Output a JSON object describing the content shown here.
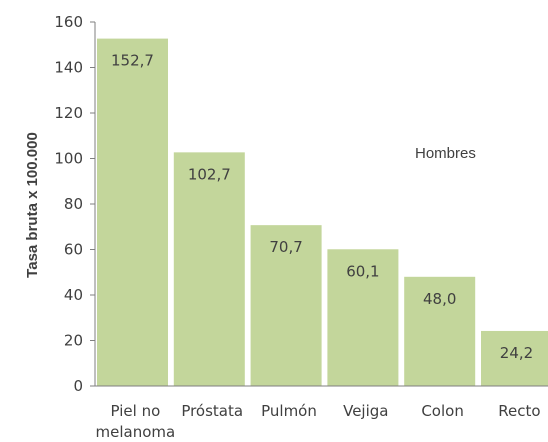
{
  "chart_data": {
    "type": "bar",
    "categories": [
      "Piel no melanoma",
      "Próstata",
      "Pulmón",
      "Vejiga",
      "Colon",
      "Recto"
    ],
    "category_lines": [
      [
        "Piel no",
        "melanoma"
      ],
      [
        "Próstata"
      ],
      [
        "Pulmón"
      ],
      [
        "Vejiga"
      ],
      [
        "Colon"
      ],
      [
        "Recto"
      ]
    ],
    "values": [
      152.7,
      102.7,
      70.7,
      60.1,
      48.0,
      24.2
    ],
    "data_labels": [
      "152,7",
      "102,7",
      "70,7",
      "60,1",
      "48,0",
      "24,2"
    ],
    "ylabel": "Tasa bruta x 100.000",
    "xlabel": "",
    "ylim": [
      0,
      160
    ],
    "yticks": [
      0,
      20,
      40,
      60,
      80,
      100,
      120,
      140,
      160
    ],
    "annotation": "Hombres",
    "grid": false,
    "bar_color": "#c3d69b",
    "axis_color": "#7f7f7f",
    "text_color": "#404040"
  }
}
